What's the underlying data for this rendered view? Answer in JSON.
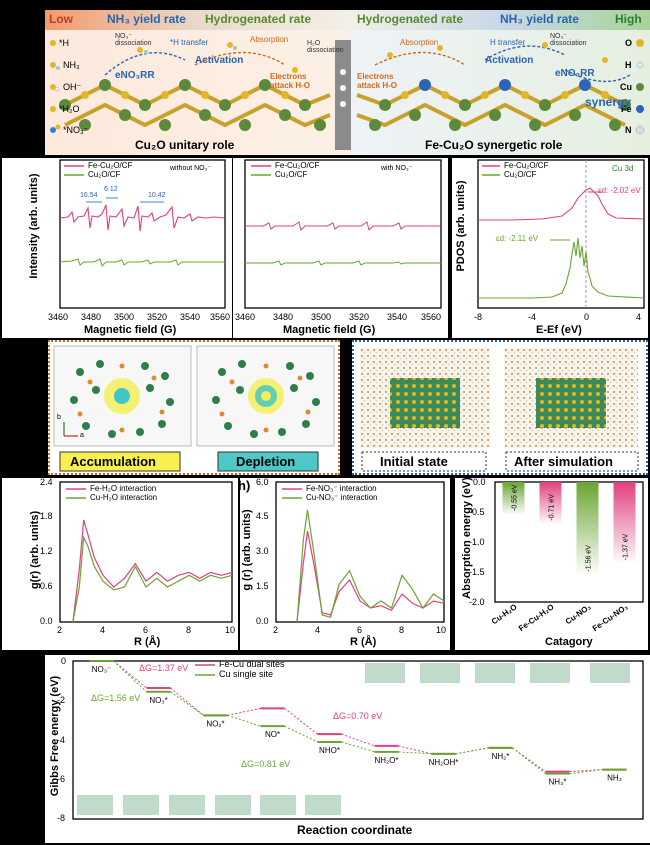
{
  "top": {
    "low": "Low",
    "high": "High",
    "nh3_yield_rate_left": "NH₃ yield rate",
    "hydrogenated_rate_left": "Hydrogenated rate",
    "hydrogenated_rate_right": "Hydrogenated rate",
    "nh3_yield_rate_right": "NH₃ yield rate",
    "legend_left": [
      "*H",
      "NH₃",
      "OH⁻",
      "*H₂O",
      "*NO₃⁻"
    ],
    "legend_right": [
      "O",
      "H",
      "Cu",
      "Fe",
      "N"
    ],
    "annot_left": [
      "NO₃⁻ dissociation",
      "*H transfer",
      "Activation",
      "eNO₃RR",
      "Absorption",
      "Electrons attack H-O",
      "H₂O dissociation"
    ],
    "annot_right": [
      "Absorption",
      "Electrons attack H-O",
      "H transfer",
      "Activation",
      "NO₃⁻ dissociation",
      "eNO₃RR",
      "synergy"
    ],
    "left_caption": "Cu₂O unitary role",
    "right_caption": "Fe-Cu₂O synergetic role"
  },
  "epr1": {
    "legend": [
      "Fe-Cu₂O/CF",
      "Cu₂O/CF"
    ],
    "note": "without NO₃⁻",
    "spacings": [
      "16.54",
      "6.12",
      "10.42"
    ],
    "ylabel": "Intensity (arb. units)",
    "xlabel": "Magnetic field (G)",
    "xticks": [
      "3460",
      "3480",
      "3500",
      "3520",
      "3540",
      "3560"
    ]
  },
  "epr2": {
    "legend": [
      "Fe-Cu₂O/CF",
      "Cu₂O/CF"
    ],
    "note": "with NO₃⁻",
    "ylabel": "Intensity (arb. units)",
    "xlabel": "Magnetic field (G)",
    "xticks": [
      "3460",
      "3480",
      "3500",
      "3520",
      "3540",
      "3560"
    ]
  },
  "pdos": {
    "legend": [
      "Fe-Cu₂O/CF",
      "Cu₂O/CF"
    ],
    "tag": "Cu 3d",
    "ed_top": "εd: -2.02 eV",
    "ed_bottom": "εd: -2.11 eV",
    "ylabel": "PDOS (arb. units)",
    "xlabel": "E-Ef (eV)",
    "xticks": [
      "-8",
      "-4",
      "0",
      "4"
    ]
  },
  "charge": {
    "accumulation": "Accumulation",
    "depletion": "Depletion",
    "axis_b": "b",
    "axis_a": "a"
  },
  "md": {
    "initial": "Initial state",
    "after": "After simulation"
  },
  "rdf1": {
    "legend": [
      "Fe-H₂O interaction",
      "Cu-H₂O interaction"
    ],
    "ylabel": "g(r) (arb. units)",
    "xlabel": "R (Å)",
    "xticks": [
      "2",
      "4",
      "6",
      "8",
      "10"
    ],
    "yticks": [
      "0.0",
      "0.6",
      "1.2",
      "1.8",
      "2.4"
    ]
  },
  "rdf2": {
    "panel_mark": "h)",
    "legend": [
      "Fe-NO₃⁻ interaction",
      "Cu-NO₃⁻ interaction"
    ],
    "ylabel": "g (r) (arb. units)",
    "xlabel": "R (Å)",
    "xticks": [
      "2",
      "4",
      "6",
      "8",
      "10"
    ],
    "yticks": [
      "0.0",
      "1.5",
      "3.0",
      "4.5",
      "6.0"
    ]
  },
  "bar": {
    "ylabel": "Absorption energy (eV)",
    "xlabel": "Catagory",
    "yticks": [
      "0.0",
      "-0.5",
      "-1.0",
      "-1.5",
      "-2.0"
    ]
  },
  "gibbs": {
    "ylabel": "Gibbs Free energy (eV)",
    "xlabel": "Reaction coordinate",
    "legend": [
      "Fe-Cu dual sites",
      "Cu single site"
    ],
    "yticks": [
      "0",
      "-2",
      "-4",
      "-6",
      "-8"
    ],
    "labels": [
      "NO₃⁻",
      "NO₃*",
      "NO₂*",
      "NO*",
      "NHO*",
      "NH₂O*",
      "NH₂OH*",
      "NH₂*",
      "NH₃*",
      "NH₃"
    ],
    "dg1": "ΔG=1.37 eV",
    "dg2": "ΔG=1.56 eV",
    "dg3": "ΔG=0.70 eV",
    "dg4": "ΔG=0.81 eV"
  },
  "colors": {
    "fe": "#e0407f",
    "cu": "#6aa532",
    "accent_blue": "#2b62b0",
    "orange": "#d2691e"
  },
  "chart_data": [
    {
      "type": "bar",
      "categories": [
        "Cu-H₂O",
        "Fe-Cu-H₂O",
        "Cu-NO₃",
        "Fe-Cu-NO₃"
      ],
      "values": [
        -0.55,
        -0.71,
        -1.56,
        -1.37
      ],
      "value_labels": [
        "-0.55 eV",
        "-0.71 eV",
        "-1.56 eV",
        "-1.37 eV"
      ],
      "ylabel": "Absorption energy (eV)",
      "xlabel": "Catagory",
      "ylim": [
        -2.0,
        0.0
      ]
    },
    {
      "type": "line",
      "x": [
        0,
        1,
        2,
        3,
        4,
        5,
        6,
        7,
        8,
        9
      ],
      "categories": [
        "NO₃⁻",
        "NO₃*",
        "NO₂*",
        "NO*",
        "NHO*",
        "NH₂O*",
        "NH₂OH*",
        "NH₂*",
        "NH₃*",
        "NH₃"
      ],
      "series": [
        {
          "name": "Fe-Cu dual sites",
          "values": [
            0,
            -1.37,
            -2.75,
            -2.4,
            -3.7,
            -4.3,
            -4.7,
            -4.4,
            -5.6,
            -5.5
          ]
        },
        {
          "name": "Cu single site",
          "values": [
            0,
            -1.56,
            -2.75,
            -3.3,
            -4.1,
            -4.6,
            -4.7,
            -4.4,
            -5.7,
            -5.5
          ]
        }
      ],
      "ylabel": "Gibbs Free energy (eV)",
      "xlabel": "Reaction coordinate",
      "ylim": [
        -8,
        0
      ]
    },
    {
      "type": "line",
      "x": [
        2.6,
        2.9,
        3.1,
        3.3,
        3.6,
        4.0,
        4.5,
        5.0,
        5.5,
        6.0,
        6.5,
        7.0,
        7.5,
        8.0,
        8.5,
        9.0,
        9.5,
        10.0
      ],
      "series": [
        {
          "name": "Fe-H₂O interaction",
          "values": [
            0.0,
            0.9,
            1.75,
            1.5,
            1.1,
            0.8,
            0.6,
            0.75,
            1.0,
            0.7,
            0.85,
            0.7,
            0.8,
            0.85,
            0.75,
            0.85,
            0.8,
            0.85
          ]
        },
        {
          "name": "Cu-H₂O interaction",
          "values": [
            0.0,
            0.6,
            1.45,
            1.3,
            0.95,
            0.7,
            0.55,
            0.6,
            0.95,
            0.6,
            0.75,
            0.6,
            0.7,
            0.8,
            0.7,
            0.8,
            0.75,
            0.8
          ]
        }
      ],
      "ylabel": "g(r) (arb. units)",
      "xlabel": "R (Å)",
      "xlim": [
        2,
        10
      ],
      "ylim": [
        0,
        2.4
      ]
    },
    {
      "type": "line",
      "x": [
        3.0,
        3.3,
        3.5,
        3.8,
        4.2,
        4.6,
        5.0,
        5.5,
        6.0,
        6.5,
        7.0,
        7.5,
        8.0,
        8.5,
        9.0,
        9.5,
        10.0
      ],
      "series": [
        {
          "name": "Fe-NO₃⁻ interaction",
          "values": [
            0.0,
            2.5,
            3.9,
            2.5,
            0.4,
            0.3,
            1.3,
            1.8,
            0.9,
            0.6,
            0.7,
            0.5,
            1.2,
            0.8,
            0.6,
            0.9,
            0.8
          ]
        },
        {
          "name": "Cu-NO₃⁻ interaction",
          "values": [
            0.0,
            3.5,
            4.8,
            3.0,
            0.3,
            0.2,
            1.6,
            2.2,
            1.1,
            0.6,
            0.9,
            0.6,
            2.0,
            1.4,
            0.6,
            1.2,
            0.9
          ]
        }
      ],
      "ylabel": "g (r) (arb. units)",
      "xlabel": "R (Å)",
      "xlim": [
        2,
        10
      ],
      "ylim": [
        0,
        6.0
      ]
    }
  ]
}
